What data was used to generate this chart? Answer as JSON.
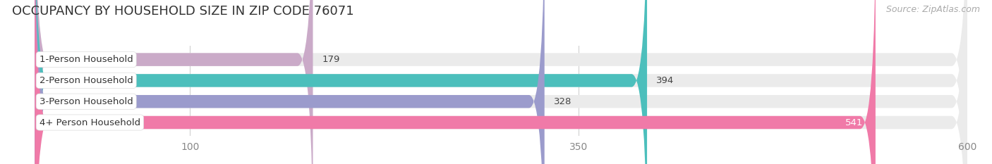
{
  "title": "OCCUPANCY BY HOUSEHOLD SIZE IN ZIP CODE 76071",
  "source": "Source: ZipAtlas.com",
  "categories": [
    "1-Person Household",
    "2-Person Household",
    "3-Person Household",
    "4+ Person Household"
  ],
  "values": [
    179,
    394,
    328,
    541
  ],
  "bar_colors": [
    "#caaac8",
    "#4cbfbc",
    "#9b9bcc",
    "#f07aa8"
  ],
  "bar_bg_color": "#ebebeb",
  "xlim_min": 50,
  "xlim_max": 650,
  "data_min": 0,
  "data_max": 600,
  "xticks": [
    100,
    350,
    600
  ],
  "title_fontsize": 13,
  "source_fontsize": 9,
  "label_fontsize": 9.5,
  "value_fontsize": 9.5,
  "tick_fontsize": 10,
  "bar_height": 0.62,
  "background_color": "#ffffff",
  "label_bg_color": "#ffffff",
  "grid_color": "#d0d0d0"
}
